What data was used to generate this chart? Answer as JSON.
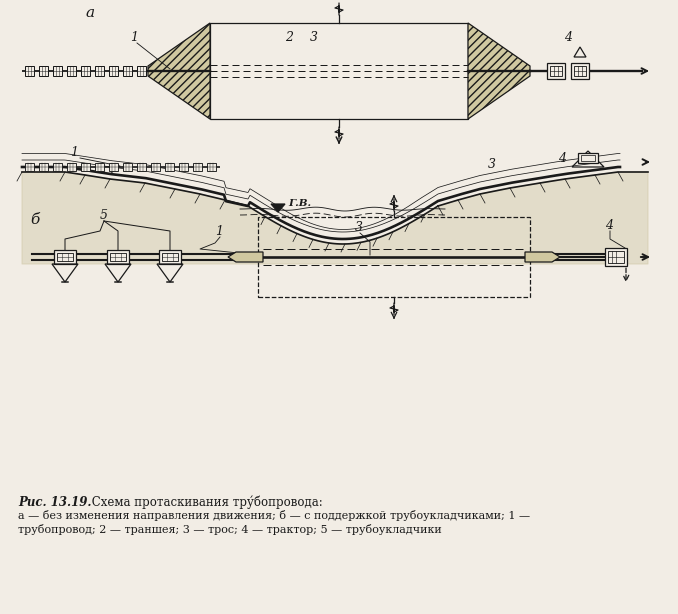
{
  "bg": "#f2ede5",
  "lc": "#1a1a1a",
  "fc_trench": "#d0c8a0",
  "fc_ground": "#c8c0a0",
  "label_a": "а",
  "label_b": "б",
  "gv": "Г.В.",
  "n1": "1",
  "n2": "2",
  "n3": "3",
  "n4": "4",
  "n5": "5",
  "cap_bold": "Рис. 13.19.",
  "cap_main": " Схема протаскивания тру́бопровода:",
  "cap1": "а — без изменения направления движения; б — с поддержкой трубоукладчиками; 1 —",
  "cap2": "трубопровод; 2 — траншея; 3 — трос; 4 — трактор; 5 — трубоукладчики"
}
